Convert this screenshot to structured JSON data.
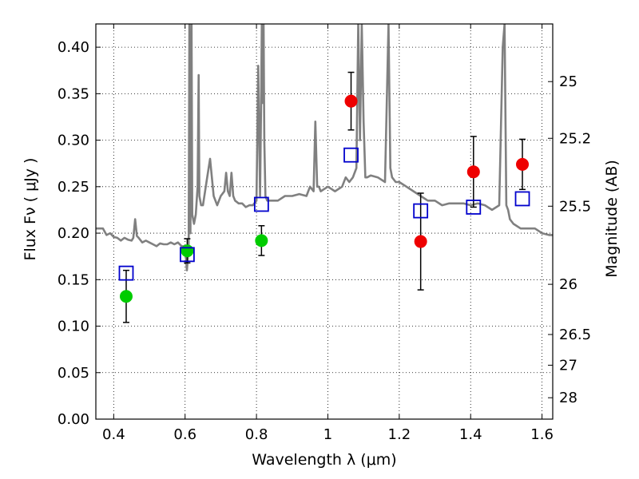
{
  "chart_data": {
    "type": "scatter",
    "xlabel": "Wavelength  λ (μm)",
    "ylabel": "Flux  Fν  ( μJy )",
    "ylabel_right": "Magnitude (AB)",
    "xlim": [
      0.35,
      1.63
    ],
    "ylim": [
      0.0,
      0.425
    ],
    "grid": true,
    "x_ticks": [
      0.4,
      0.6,
      0.8,
      1.0,
      1.2,
      1.4,
      1.6
    ],
    "x_tick_labels": [
      "0.4",
      "0.6",
      "0.8",
      "1",
      "1.2",
      "1.4",
      "1.6"
    ],
    "y_ticks": [
      0.0,
      0.05,
      0.1,
      0.15,
      0.2,
      0.25,
      0.3,
      0.35,
      0.4
    ],
    "y_tick_labels": [
      "0.00",
      "0.05",
      "0.10",
      "0.15",
      "0.20",
      "0.25",
      "0.30",
      "0.35",
      "0.40"
    ],
    "right_ticks": [
      {
        "label": "25",
        "flux": 0.363
      },
      {
        "label": "25.2",
        "flux": 0.302
      },
      {
        "label": "25.5",
        "flux": 0.229
      },
      {
        "label": "26",
        "flux": 0.145
      },
      {
        "label": "26.5",
        "flux": 0.091
      },
      {
        "label": "27",
        "flux": 0.058
      },
      {
        "label": "28",
        "flux": 0.023
      }
    ],
    "series": [
      {
        "marker": "circle",
        "color": "#00cc00",
        "points": [
          {
            "x": 0.435,
            "y": 0.132,
            "err": 0.028
          },
          {
            "x": 0.606,
            "y": 0.181,
            "err": 0.013
          },
          {
            "x": 0.814,
            "y": 0.192,
            "err": 0.016
          }
        ]
      },
      {
        "marker": "circle",
        "color": "#ee0000",
        "points": [
          {
            "x": 1.065,
            "y": 0.342,
            "err": 0.031
          },
          {
            "x": 1.26,
            "y": 0.191,
            "err": 0.052
          },
          {
            "x": 1.408,
            "y": 0.266,
            "err": 0.038
          },
          {
            "x": 1.545,
            "y": 0.274,
            "err": 0.027
          }
        ]
      },
      {
        "marker": "open-square",
        "color": "#0000cc",
        "points": [
          {
            "x": 0.435,
            "y": 0.157
          },
          {
            "x": 0.606,
            "y": 0.177
          },
          {
            "x": 0.814,
            "y": 0.231
          },
          {
            "x": 1.065,
            "y": 0.284
          },
          {
            "x": 1.26,
            "y": 0.224
          },
          {
            "x": 1.408,
            "y": 0.228
          },
          {
            "x": 1.545,
            "y": 0.237
          }
        ]
      },
      {
        "type": "line",
        "color": "#808080",
        "x": [
          0.35,
          0.37,
          0.38,
          0.39,
          0.4,
          0.41,
          0.42,
          0.43,
          0.44,
          0.45,
          0.455,
          0.46,
          0.465,
          0.47,
          0.48,
          0.49,
          0.5,
          0.51,
          0.52,
          0.53,
          0.54,
          0.55,
          0.56,
          0.57,
          0.58,
          0.59,
          0.6,
          0.605,
          0.61,
          0.612,
          0.615,
          0.618,
          0.62,
          0.625,
          0.63,
          0.635,
          0.638,
          0.64,
          0.645,
          0.65,
          0.66,
          0.67,
          0.68,
          0.69,
          0.7,
          0.71,
          0.715,
          0.72,
          0.725,
          0.73,
          0.735,
          0.74,
          0.75,
          0.76,
          0.77,
          0.78,
          0.79,
          0.8,
          0.805,
          0.81,
          0.813,
          0.815,
          0.818,
          0.82,
          0.822,
          0.825,
          0.83,
          0.84,
          0.86,
          0.88,
          0.9,
          0.92,
          0.94,
          0.95,
          0.96,
          0.965,
          0.97,
          0.975,
          0.98,
          1.0,
          1.02,
          1.04,
          1.05,
          1.06,
          1.07,
          1.08,
          1.085,
          1.09,
          1.095,
          1.1,
          1.105,
          1.11,
          1.12,
          1.14,
          1.16,
          1.17,
          1.175,
          1.18,
          1.19,
          1.2,
          1.22,
          1.24,
          1.26,
          1.28,
          1.3,
          1.32,
          1.34,
          1.36,
          1.38,
          1.4,
          1.42,
          1.44,
          1.46,
          1.48,
          1.49,
          1.495,
          1.5,
          1.505,
          1.51,
          1.52,
          1.54,
          1.56,
          1.58,
          1.6,
          1.62,
          1.63
        ],
        "y": [
          0.205,
          0.205,
          0.198,
          0.2,
          0.196,
          0.195,
          0.192,
          0.195,
          0.193,
          0.192,
          0.195,
          0.215,
          0.197,
          0.195,
          0.19,
          0.192,
          0.19,
          0.188,
          0.186,
          0.189,
          0.188,
          0.188,
          0.19,
          0.188,
          0.19,
          0.186,
          0.186,
          0.16,
          0.185,
          0.425,
          0.2,
          0.425,
          0.22,
          0.21,
          0.22,
          0.25,
          0.37,
          0.24,
          0.23,
          0.23,
          0.255,
          0.28,
          0.24,
          0.23,
          0.24,
          0.245,
          0.265,
          0.245,
          0.24,
          0.265,
          0.24,
          0.235,
          0.232,
          0.232,
          0.228,
          0.23,
          0.23,
          0.235,
          0.38,
          0.24,
          0.34,
          0.425,
          0.34,
          0.425,
          0.3,
          0.24,
          0.235,
          0.235,
          0.235,
          0.24,
          0.24,
          0.242,
          0.24,
          0.25,
          0.245,
          0.32,
          0.25,
          0.25,
          0.245,
          0.25,
          0.245,
          0.25,
          0.26,
          0.255,
          0.26,
          0.27,
          0.425,
          0.3,
          0.425,
          0.32,
          0.26,
          0.26,
          0.262,
          0.26,
          0.255,
          0.425,
          0.27,
          0.26,
          0.255,
          0.255,
          0.25,
          0.245,
          0.24,
          0.235,
          0.235,
          0.23,
          0.232,
          0.232,
          0.232,
          0.23,
          0.232,
          0.23,
          0.225,
          0.23,
          0.4,
          0.425,
          0.23,
          0.225,
          0.215,
          0.21,
          0.205,
          0.205,
          0.205,
          0.2,
          0.198,
          0.198
        ]
      }
    ]
  }
}
